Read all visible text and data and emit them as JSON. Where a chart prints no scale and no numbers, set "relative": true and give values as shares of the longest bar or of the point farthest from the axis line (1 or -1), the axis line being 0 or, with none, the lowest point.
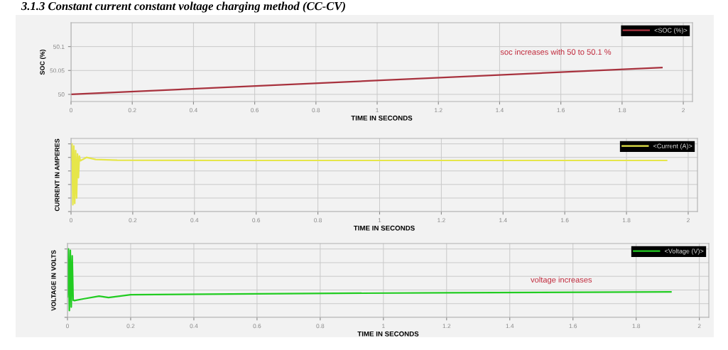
{
  "chart_data": [
    {
      "type": "line",
      "title": "3.1.3 Constant current constant voltage charging method (CC-CV)",
      "xlabel": "TIME IN SECONDS",
      "ylabel": "SOC (%)",
      "xlim": [
        0,
        2.03
      ],
      "xticks": [
        0,
        0.2,
        0.4,
        0.6,
        0.8,
        1,
        1.2,
        1.4,
        1.6,
        1.8,
        2
      ],
      "ylim": [
        49.985,
        50.15
      ],
      "yticks": [
        50,
        50.05,
        50.1
      ],
      "series": [
        {
          "name": "<SOC (%)>",
          "color": "#a8323e",
          "x": [
            0,
            1.93
          ],
          "values": [
            50,
            50.056
          ]
        }
      ],
      "annotations": [
        "soc increases with 50 to 50.1 %"
      ],
      "grid": true,
      "legend": "top right"
    },
    {
      "type": "line",
      "xlabel": "TIME IN SECONDS",
      "ylabel": "CURRENT IN AMPERES",
      "relative": true,
      "xlim": [
        0,
        2.03
      ],
      "xticks": [
        0,
        0.2,
        0.4,
        0.6,
        0.8,
        1,
        1.2,
        1.4,
        1.6,
        1.8,
        2
      ],
      "series": [
        {
          "name": "<Current (A)>",
          "color": "#e6e64a",
          "x": [
            0,
            0.003,
            0.006,
            0.009,
            0.012,
            0.015,
            0.018,
            0.021,
            0.024,
            0.027,
            0.03,
            0.05,
            0.08,
            0.15,
            0.5,
            1.0,
            1.5,
            1.93
          ],
          "values": [
            0.76,
            1.0,
            0.1,
            0.97,
            0.12,
            0.9,
            0.2,
            0.85,
            0.5,
            0.82,
            0.75,
            0.8,
            0.77,
            0.76,
            0.755,
            0.755,
            0.755,
            0.755
          ]
        }
      ],
      "grid": true,
      "legend": "top right"
    },
    {
      "type": "line",
      "xlabel": "TIME IN SECONDS",
      "ylabel": "VOLTAGE IN VOLTS",
      "relative": true,
      "xlim": [
        0,
        2.03
      ],
      "xticks": [
        0,
        0.2,
        0.4,
        0.6,
        0.8,
        1,
        1.2,
        1.4,
        1.6,
        1.8,
        2
      ],
      "series": [
        {
          "name": "<Voltage (V)>",
          "color": "#22cc22",
          "x": [
            0,
            0.003,
            0.006,
            0.009,
            0.012,
            0.015,
            0.018,
            0.022,
            0.05,
            0.1,
            0.13,
            0.2,
            0.6,
            1.2,
            1.91
          ],
          "values": [
            0.3,
            1.0,
            0.1,
            0.98,
            0.15,
            0.9,
            0.25,
            0.245,
            0.27,
            0.31,
            0.29,
            0.33,
            0.345,
            0.36,
            0.372
          ]
        }
      ],
      "annotations": [
        "voltage increases"
      ],
      "grid": true,
      "legend": "top right"
    }
  ]
}
